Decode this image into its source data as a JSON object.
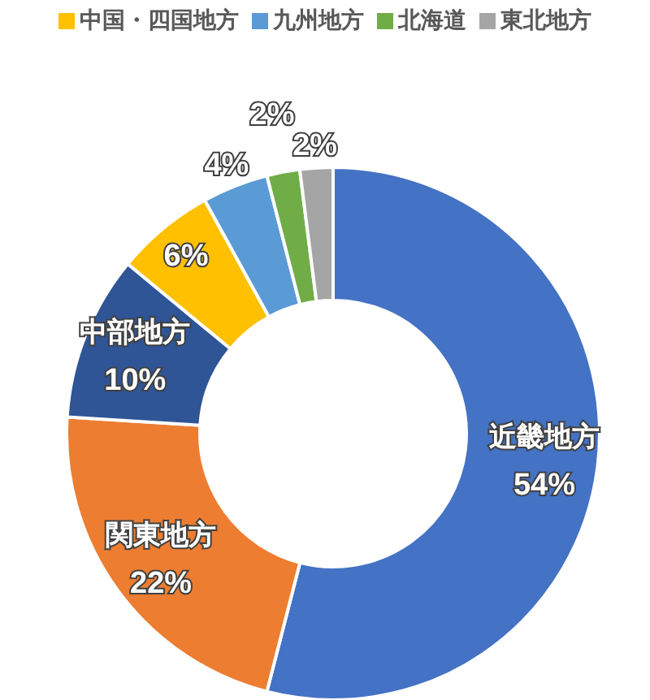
{
  "chart_data": {
    "type": "donut",
    "categories": [
      "近畿地方",
      "関東地方",
      "中部地方",
      "中国・四国地方",
      "九州地方",
      "北海道",
      "東北地方"
    ],
    "values": [
      54,
      22,
      10,
      6,
      4,
      2,
      2
    ],
    "colors": [
      "#4472c4",
      "#ed7d31",
      "#2f5597",
      "#ffc000",
      "#5b9bd5",
      "#70ad47",
      "#a5a5a5"
    ],
    "value_labels": [
      "54%",
      "22%",
      "10%",
      "6%",
      "4%",
      "2%",
      "2%"
    ],
    "legend": "top"
  }
}
